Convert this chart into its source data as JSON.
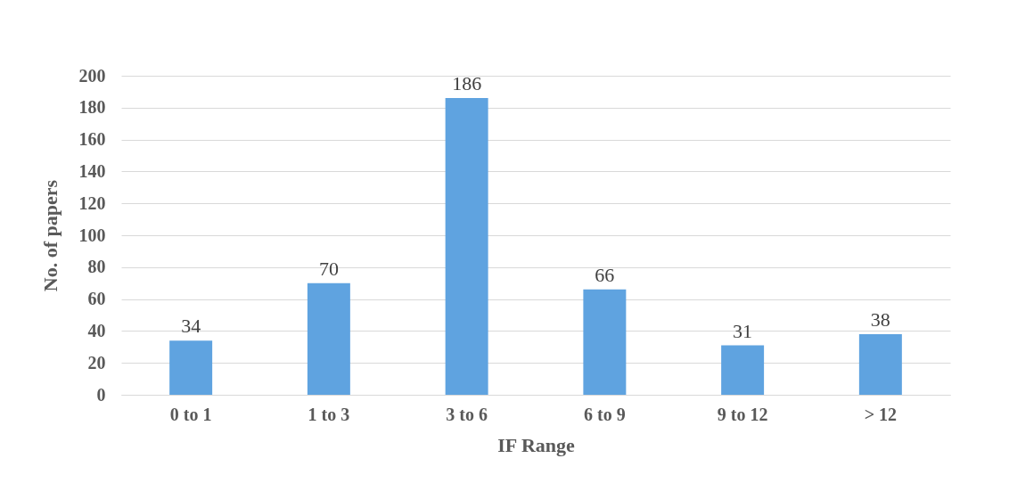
{
  "chart_data": {
    "type": "bar",
    "xlabel": "IF Range",
    "ylabel": "No. of papers",
    "categories": [
      "0 to 1",
      "1 to 3",
      "3 to 6",
      "6 to 9",
      "9 to 12",
      "> 12"
    ],
    "values": [
      34,
      70,
      186,
      66,
      31,
      38
    ],
    "color": "#5fa3e0",
    "ylim": [
      0,
      200
    ],
    "yticks": [
      0,
      20,
      40,
      60,
      80,
      100,
      120,
      140,
      160,
      180,
      200
    ],
    "grid": "y",
    "data_labels": true
  }
}
